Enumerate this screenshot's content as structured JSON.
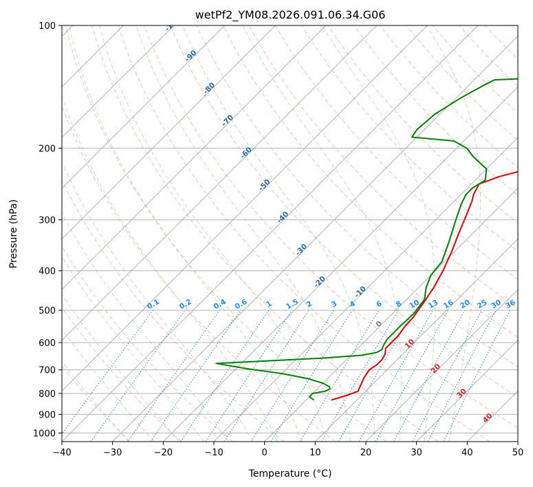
{
  "chart_data": {
    "type": "line",
    "title": "wetPf2_YM08.2026.091.06.34.G06",
    "xlabel": "Temperature (°C)",
    "ylabel": "Pressure (hPa)",
    "xlim": [
      -40,
      50
    ],
    "ylim": [
      1050,
      100
    ],
    "yscale": "log",
    "grid": true,
    "x_ticks": [
      "−40",
      "−30",
      "−20",
      "−10",
      "0",
      "10",
      "20",
      "30",
      "40",
      "50"
    ],
    "x_tick_values": [
      -40,
      -30,
      -20,
      -10,
      0,
      10,
      20,
      30,
      40,
      50
    ],
    "y_ticks": [
      "100",
      "200",
      "300",
      "400",
      "500",
      "600",
      "700",
      "800",
      "900",
      "1000"
    ],
    "y_tick_values": [
      100,
      200,
      300,
      400,
      500,
      600,
      700,
      800,
      900,
      1000
    ],
    "series": [
      {
        "role": "temperature",
        "color": "#e00000",
        "points": [
          [
            5,
            830
          ],
          [
            7,
            810
          ],
          [
            8.5,
            790
          ],
          [
            8,
            770
          ],
          [
            7.5,
            750
          ],
          [
            7,
            730
          ],
          [
            6.5,
            700
          ],
          [
            7,
            680
          ],
          [
            7,
            660
          ],
          [
            6.5,
            640
          ],
          [
            5.5,
            620
          ],
          [
            5.5,
            600
          ],
          [
            5.5,
            580
          ],
          [
            5,
            550
          ],
          [
            4.8,
            520
          ],
          [
            4,
            480
          ],
          [
            3,
            440
          ],
          [
            1.5,
            400
          ],
          [
            -0.5,
            360
          ],
          [
            -3,
            320
          ],
          [
            -5,
            290
          ],
          [
            -6.5,
            270
          ],
          [
            -7.5,
            260
          ],
          [
            -8.5,
            245
          ],
          [
            -6,
            235
          ],
          [
            -3,
            228
          ],
          [
            0,
            220
          ],
          [
            4,
            205
          ],
          [
            9,
            190
          ],
          [
            13,
            180
          ],
          [
            15,
            170
          ],
          [
            16,
            160
          ],
          [
            17,
            150
          ],
          [
            18.5,
            142
          ],
          [
            20,
            135
          ],
          [
            21,
            125
          ],
          [
            22.5,
            115
          ],
          [
            24.5,
            108
          ],
          [
            26.5,
            100
          ]
        ]
      },
      {
        "role": "dewpoint",
        "color": "#008000",
        "points": [
          [
            1.5,
            830
          ],
          [
            0,
            815
          ],
          [
            0,
            800
          ],
          [
            2,
            790
          ],
          [
            2.5,
            780
          ],
          [
            2,
            770
          ],
          [
            0,
            755
          ],
          [
            -4,
            735
          ],
          [
            -10,
            715
          ],
          [
            -18,
            695
          ],
          [
            -25,
            675
          ],
          [
            -15,
            665
          ],
          [
            -5,
            655
          ],
          [
            2,
            645
          ],
          [
            4.5,
            635
          ],
          [
            5,
            625
          ],
          [
            4.5,
            610
          ],
          [
            4,
            590
          ],
          [
            4,
            570
          ],
          [
            4,
            545
          ],
          [
            4.2,
            510
          ],
          [
            3.5,
            470
          ],
          [
            1.5,
            440
          ],
          [
            0,
            410
          ],
          [
            -0.5,
            380
          ],
          [
            -3,
            340
          ],
          [
            -6,
            300
          ],
          [
            -8,
            275
          ],
          [
            -9,
            260
          ],
          [
            -9,
            250
          ],
          [
            -8,
            240
          ],
          [
            -10,
            225
          ],
          [
            -15,
            210
          ],
          [
            -18,
            200
          ],
          [
            -22,
            192
          ],
          [
            -31,
            188
          ],
          [
            -31.5,
            180
          ],
          [
            -31,
            165
          ],
          [
            -29,
            150
          ],
          [
            -27,
            140
          ],
          [
            -26,
            136
          ],
          [
            -15,
            134
          ],
          [
            -8,
            130
          ],
          [
            -6.5,
            125
          ],
          [
            -5,
            115
          ],
          [
            -3,
            105
          ],
          [
            -1,
            100
          ]
        ]
      }
    ],
    "dry_adiabat_labels": [
      "-100",
      "-90",
      "-80",
      "-70",
      "-60",
      "-50",
      "-40",
      "-30",
      "-20",
      "-10",
      "0",
      "10",
      "20",
      "30",
      "40"
    ],
    "dry_adiabat_values": [
      -100,
      -90,
      -80,
      -70,
      -60,
      -50,
      -40,
      -30,
      -20,
      -10,
      0,
      10,
      20,
      30,
      40
    ],
    "mixing_ratio_labels": [
      "0.1",
      "0.2",
      "0.4",
      "0.6",
      "1",
      "1.5",
      "2",
      "3",
      "4",
      "6",
      "8",
      "10",
      "13",
      "16",
      "20",
      "25",
      "30",
      "36"
    ],
    "mixing_ratio_values": [
      0.1,
      0.2,
      0.4,
      0.6,
      1,
      1.5,
      2,
      3,
      4,
      6,
      8,
      10,
      13,
      16,
      20,
      25,
      30,
      36
    ],
    "moist_adiabat_start_temps": [
      -30,
      -25,
      -20,
      -15,
      -10,
      -5,
      0,
      5,
      10,
      15,
      20,
      25,
      30,
      35
    ],
    "colors": {
      "isotherm": "#aaaaaa",
      "isobar": "#aaaaaa",
      "dry_adiabat": "#fa8b6f",
      "moist_adiabat": "#6fbf6f",
      "mixing_ratio": "#1f7fdf",
      "label_blue": "#2b6ca8",
      "label_red": "#d62728",
      "label_mixing": "#1f8fff",
      "label_zero": "#808080"
    }
  }
}
